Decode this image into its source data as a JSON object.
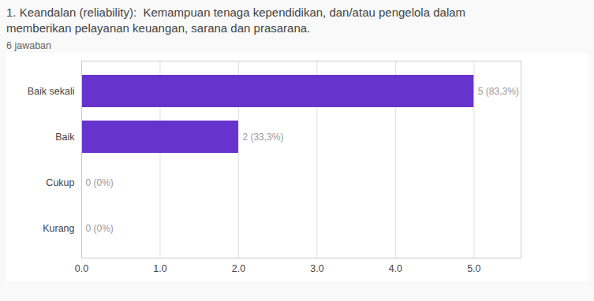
{
  "chart_data": {
    "type": "bar",
    "orientation": "horizontal",
    "title": "1. Keandalan (reliability):  Kemampuan tenaga kependidikan, dan/atau pengelola dalam\nmemberikan pelayanan keuangan, sarana dan prasarana.",
    "subtitle": "6 jawaban",
    "categories": [
      "Kurang",
      "Cukup",
      "Baik",
      "Baik sekali"
    ],
    "values": [
      0,
      0,
      2,
      5
    ],
    "value_labels": [
      "0 (0%)",
      "0 (0%)",
      "2 (33,3%)",
      "5 (83,3%)"
    ],
    "data_labels": true,
    "color": "#6633cc",
    "xlim": [
      0,
      5.6
    ],
    "xticks": [
      0,
      1,
      2,
      3,
      4,
      5
    ],
    "grid": true
  }
}
